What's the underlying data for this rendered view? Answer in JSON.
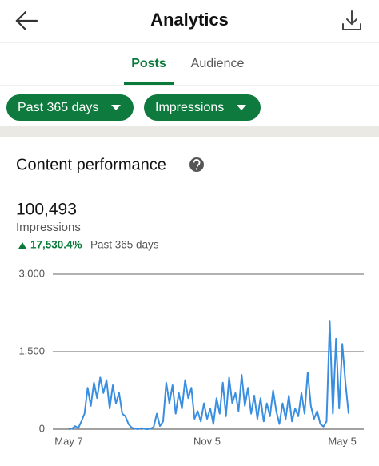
{
  "header": {
    "title": "Analytics"
  },
  "tabs": [
    "Posts",
    "Audience"
  ],
  "filters": [
    "Past 365 days",
    "Impressions"
  ],
  "section": {
    "title": "Content performance",
    "total": "100,493",
    "metric": "Impressions",
    "change": "17,530.4%",
    "period": "Past 365 days"
  },
  "chart_data": {
    "type": "line",
    "categories": [
      "May 7",
      null,
      null,
      null,
      null,
      null,
      null,
      null,
      null,
      null,
      null,
      null,
      null,
      null,
      null,
      null,
      null,
      null,
      null,
      null,
      null,
      null,
      null,
      null,
      null,
      null,
      null,
      null,
      null,
      null,
      null,
      null,
      null,
      null,
      null,
      null,
      null,
      null,
      null,
      null,
      null,
      null,
      null,
      null,
      "Nov 5",
      null,
      null,
      null,
      null,
      null,
      null,
      null,
      null,
      null,
      null,
      null,
      null,
      null,
      null,
      null,
      null,
      null,
      null,
      null,
      null,
      null,
      null,
      null,
      null,
      null,
      null,
      null,
      null,
      null,
      null,
      null,
      null,
      null,
      null,
      null,
      null,
      null,
      null,
      null,
      null,
      null,
      null,
      "May 5",
      null,
      null
    ],
    "series": [
      {
        "name": "Impressions",
        "color": "#3a8ee0",
        "values": [
          0,
          10,
          60,
          20,
          150,
          300,
          800,
          450,
          900,
          600,
          1000,
          700,
          950,
          400,
          850,
          500,
          700,
          300,
          250,
          100,
          30,
          10,
          0,
          20,
          5,
          0,
          10,
          40,
          300,
          60,
          150,
          900,
          500,
          850,
          300,
          700,
          400,
          950,
          600,
          800,
          200,
          350,
          150,
          500,
          200,
          400,
          100,
          600,
          300,
          900,
          250,
          1000,
          500,
          700,
          350,
          1050,
          450,
          800,
          300,
          650,
          200,
          600,
          150,
          500,
          250,
          750,
          350,
          100,
          500,
          200,
          650,
          150,
          400,
          250,
          700,
          300,
          1100,
          450,
          200,
          350,
          100,
          50,
          150,
          2100,
          300,
          1750,
          400,
          1650,
          900,
          300
        ]
      }
    ],
    "ylim": [
      0,
      3000
    ],
    "yticks": [
      0,
      {
        "value": 1500,
        "label": "1,500"
      },
      {
        "value": 3000,
        "label": "3,000"
      }
    ],
    "grid": true
  }
}
